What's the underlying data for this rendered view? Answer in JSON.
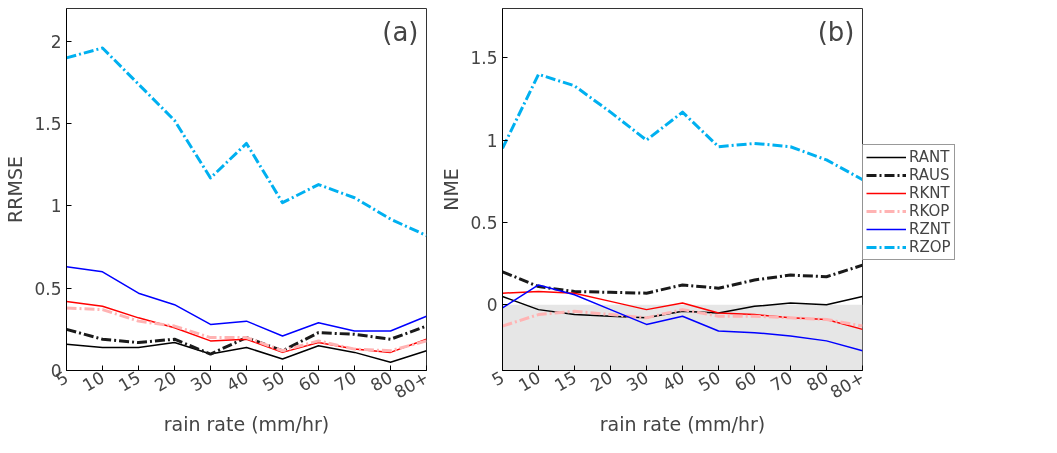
{
  "chart_data": [
    {
      "type": "line",
      "xlabel": "rain rate (mm/hr)",
      "ylabel": "RRMSE",
      "annotations": [
        "(a)"
      ],
      "categories": [
        "5",
        "10",
        "15",
        "20",
        "30",
        "40",
        "50",
        "60",
        "70",
        "80",
        "80+"
      ],
      "ylim": [
        0,
        2.2
      ],
      "yticks": [
        0,
        0.5,
        1,
        1.5,
        2
      ],
      "grid": false,
      "legend": false,
      "series": [
        {
          "color": "#000000",
          "line_style": "solid",
          "values": [
            0.16,
            0.14,
            0.14,
            0.17,
            0.1,
            0.14,
            0.07,
            0.15,
            0.11,
            0.05,
            0.12
          ]
        },
        {
          "color": "#1a1a1a",
          "line_style": "dashed",
          "values": [
            0.25,
            0.19,
            0.17,
            0.19,
            0.1,
            0.2,
            0.12,
            0.23,
            0.22,
            0.19,
            0.27
          ]
        },
        {
          "color": "#ff0000",
          "line_style": "solid",
          "values": [
            0.42,
            0.39,
            0.32,
            0.26,
            0.18,
            0.19,
            0.11,
            0.17,
            0.13,
            0.11,
            0.19
          ]
        },
        {
          "color": "#ffb3b3",
          "line_style": "dashed",
          "values": [
            0.38,
            0.37,
            0.3,
            0.27,
            0.2,
            0.2,
            0.12,
            0.18,
            0.13,
            0.12,
            0.18
          ]
        },
        {
          "color": "#0000ff",
          "line_style": "solid",
          "values": [
            0.63,
            0.6,
            0.47,
            0.4,
            0.28,
            0.3,
            0.21,
            0.29,
            0.24,
            0.24,
            0.33
          ]
        },
        {
          "color": "#00b0f0",
          "line_style": "dashed",
          "values": [
            1.9,
            1.96,
            1.74,
            1.52,
            1.17,
            1.38,
            1.02,
            1.13,
            1.05,
            0.92,
            0.82
          ]
        }
      ]
    },
    {
      "type": "line",
      "xlabel": "rain rate (mm/hr)",
      "ylabel": "NME",
      "annotations": [
        "(b)"
      ],
      "categories": [
        "5",
        "10",
        "15",
        "20",
        "30",
        "40",
        "50",
        "60",
        "70",
        "80",
        "80+"
      ],
      "ylim": [
        -0.4,
        1.8
      ],
      "yticks": [
        0,
        0.5,
        1,
        1.5
      ],
      "grid": false,
      "legend": "right",
      "bands": [
        {
          "axis": "y",
          "from": -0.4,
          "to": 0,
          "color": "#e6e6e6"
        }
      ],
      "series": [
        {
          "name": "RANT",
          "color": "#000000",
          "line_style": "solid",
          "values": [
            0.05,
            -0.03,
            -0.06,
            -0.07,
            -0.08,
            -0.04,
            -0.05,
            -0.01,
            0.01,
            0.0,
            0.05
          ]
        },
        {
          "name": "RAUS",
          "color": "#1a1a1a",
          "line_style": "dashed",
          "values": [
            0.2,
            0.11,
            0.08,
            0.075,
            0.07,
            0.12,
            0.1,
            0.15,
            0.18,
            0.17,
            0.24
          ]
        },
        {
          "name": "RKNT",
          "color": "#ff0000",
          "line_style": "solid",
          "values": [
            0.07,
            0.08,
            0.07,
            0.02,
            -0.03,
            0.01,
            -0.05,
            -0.06,
            -0.08,
            -0.09,
            -0.15
          ]
        },
        {
          "name": "RKOP",
          "color": "#ffb3b3",
          "line_style": "dashed",
          "values": [
            -0.13,
            -0.06,
            -0.04,
            -0.06,
            -0.08,
            -0.03,
            -0.07,
            -0.07,
            -0.08,
            -0.09,
            -0.13
          ]
        },
        {
          "name": "RZNT",
          "color": "#0000ff",
          "line_style": "solid",
          "values": [
            -0.02,
            0.12,
            0.06,
            -0.03,
            -0.12,
            -0.07,
            -0.16,
            -0.17,
            -0.19,
            -0.22,
            -0.28
          ]
        },
        {
          "name": "RZOP",
          "color": "#00b0f0",
          "line_style": "dashed",
          "values": [
            0.95,
            1.4,
            1.33,
            1.17,
            1.0,
            1.17,
            0.96,
            0.98,
            0.96,
            0.88,
            0.76
          ]
        }
      ]
    }
  ]
}
